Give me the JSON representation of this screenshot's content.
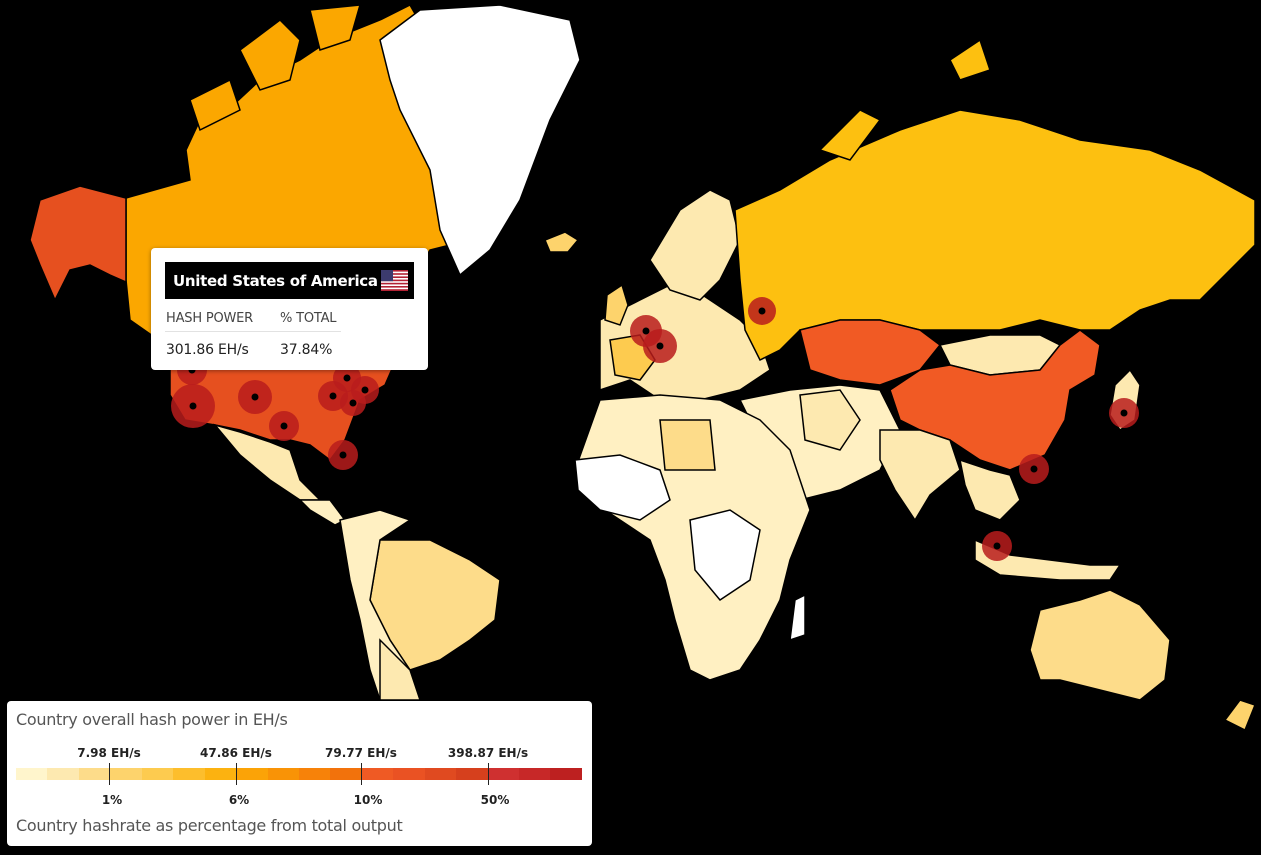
{
  "tooltip": {
    "country": "United States of America",
    "hash_power_header": "HASH POWER",
    "pct_header": "% TOTAL",
    "hash_power_value": "301.86 EH/s",
    "pct_value": "37.84%"
  },
  "legend": {
    "title": "Country overall hash power in EH/s",
    "subtitle": "Country hashrate as percentage from total output",
    "hash_labels": [
      "7.98 EH/s",
      "47.86 EH/s",
      "79.77 EH/s",
      "398.87 EH/s"
    ],
    "pct_labels": [
      "1%",
      "6%",
      "10%",
      "50%"
    ],
    "scale_colors": [
      "#fff5cc",
      "#fde9b0",
      "#fddc8a",
      "#fdd36c",
      "#fdcb4f",
      "#fdbe2c",
      "#fcb210",
      "#fba307",
      "#f99306",
      "#f78209",
      "#f2720c",
      "#ef5a24",
      "#ea5223",
      "#e04a20",
      "#d6401d",
      "#cf3030",
      "#c72828",
      "#bd2020"
    ]
  },
  "colors": {
    "ocean": "#000000",
    "no_data": "#ffffff",
    "tier_low": "#fff0c2",
    "tier_mid_low": "#fcdc84",
    "tier_mid": "#fdc010",
    "tier_high": "#fba700",
    "tier_very_high": "#f15a24",
    "tier_top": "#e6501f",
    "mining_dot": "#b91c1c"
  }
}
